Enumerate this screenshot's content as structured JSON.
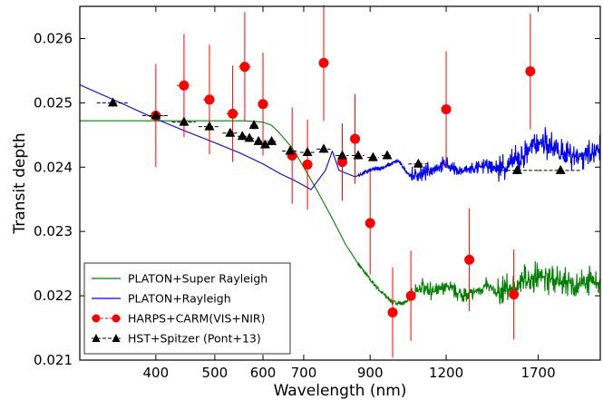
{
  "chart_data": {
    "type": "scatter",
    "xlabel": "Wavelength (nm)",
    "ylabel": "Transit depth",
    "xscale": "log",
    "xlim": [
      300,
      2150
    ],
    "ylim": [
      0.021,
      0.0265
    ],
    "xticks": [
      400,
      500,
      600,
      700,
      900,
      1200,
      1700
    ],
    "xtick_labels": [
      "400",
      "500",
      "600",
      "700",
      "900",
      "1200",
      "1700"
    ],
    "yticks": [
      0.021,
      0.022,
      0.023,
      0.024,
      0.025,
      0.026
    ],
    "ytick_labels": [
      "0.021",
      "0.022",
      "0.023",
      "0.024",
      "0.025",
      "0.026"
    ],
    "grid": false,
    "legend_position": "lower-left",
    "series": [
      {
        "name": "PLATON+Super Rayleigh",
        "kind": "line",
        "color": "#008000",
        "x": [
          300,
          400,
          500,
          560,
          600,
          620,
          640,
          670,
          700,
          740,
          780,
          820,
          860,
          900,
          940,
          980,
          1020,
          1060,
          1100,
          1150,
          1200,
          1250,
          1300,
          1350,
          1400,
          1450,
          1500,
          1550,
          1600,
          1650,
          1700,
          1750,
          1800,
          1850,
          1900,
          1950,
          2000,
          2050,
          2100,
          2150
        ],
        "y": [
          0.02472,
          0.02472,
          0.02472,
          0.02472,
          0.0247,
          0.02465,
          0.02452,
          0.0243,
          0.024,
          0.0236,
          0.0232,
          0.0228,
          0.0225,
          0.02225,
          0.02205,
          0.0219,
          0.02188,
          0.022,
          0.02215,
          0.02205,
          0.02215,
          0.02205,
          0.022,
          0.02208,
          0.02215,
          0.02205,
          0.02208,
          0.02212,
          0.02222,
          0.02228,
          0.02232,
          0.0223,
          0.02225,
          0.02218,
          0.0222,
          0.02215,
          0.02218,
          0.02222,
          0.0222,
          0.02222
        ]
      },
      {
        "name": "PLATON+Rayleigh",
        "kind": "line",
        "color": "#0000ff",
        "x": [
          300,
          350,
          400,
          450,
          500,
          550,
          600,
          640,
          680,
          720,
          760,
          780,
          800,
          850,
          900,
          950,
          1000,
          1050,
          1100,
          1150,
          1200,
          1250,
          1300,
          1350,
          1400,
          1450,
          1500,
          1550,
          1600,
          1650,
          1700,
          1750,
          1800,
          1850,
          1900,
          1950,
          2000,
          2050,
          2100,
          2150
        ],
        "y": [
          0.02528,
          0.025,
          0.02475,
          0.02455,
          0.02438,
          0.02422,
          0.02405,
          0.0239,
          0.02378,
          0.02365,
          0.02395,
          0.02425,
          0.02395,
          0.02385,
          0.02395,
          0.024,
          0.0241,
          0.02385,
          0.0239,
          0.024,
          0.02405,
          0.02395,
          0.02395,
          0.024,
          0.02402,
          0.02398,
          0.024,
          0.02408,
          0.02415,
          0.0243,
          0.0244,
          0.02435,
          0.0243,
          0.0242,
          0.02422,
          0.02418,
          0.0242,
          0.02425,
          0.02422,
          0.02425
        ]
      },
      {
        "name": "HARPS+CARM(VIS+NIR)",
        "kind": "errorbar",
        "color": "#ff0000",
        "points": [
          {
            "x": 400,
            "y": 0.0248,
            "yerr": 0.0008,
            "xerr": 12
          },
          {
            "x": 445,
            "y": 0.02527,
            "yerr": 0.0008,
            "xerr": 12
          },
          {
            "x": 490,
            "y": 0.02505,
            "yerr": 0.00085,
            "xerr": 12
          },
          {
            "x": 535,
            "y": 0.02483,
            "yerr": 0.00075,
            "xerr": 12
          },
          {
            "x": 560,
            "y": 0.02556,
            "yerr": 0.00085,
            "xerr": 12
          },
          {
            "x": 600,
            "y": 0.02498,
            "yerr": 0.0008,
            "xerr": 12
          },
          {
            "x": 670,
            "y": 0.02418,
            "yerr": 0.00075,
            "xerr": 12
          },
          {
            "x": 710,
            "y": 0.02404,
            "yerr": 0.0007,
            "xerr": 12
          },
          {
            "x": 755,
            "y": 0.02562,
            "yerr": 0.0009,
            "xerr": 12
          },
          {
            "x": 810,
            "y": 0.02408,
            "yerr": 0.0006,
            "xerr": 12
          },
          {
            "x": 850,
            "y": 0.02444,
            "yerr": 0.0007,
            "xerr": 12
          },
          {
            "x": 900,
            "y": 0.02313,
            "yerr": 0.0008,
            "xerr": 15
          },
          {
            "x": 980,
            "y": 0.02174,
            "yerr": 0.0007,
            "xerr": 15
          },
          {
            "x": 1050,
            "y": 0.022,
            "yerr": 0.0007,
            "xerr": 15
          },
          {
            "x": 1200,
            "y": 0.0249,
            "yerr": 0.0009,
            "xerr": 20
          },
          {
            "x": 1310,
            "y": 0.02256,
            "yerr": 0.0008,
            "xerr": 20
          },
          {
            "x": 1550,
            "y": 0.02202,
            "yerr": 0.0007,
            "xerr": 20
          },
          {
            "x": 1650,
            "y": 0.02549,
            "yerr": 0.0009,
            "xerr": 20
          }
        ]
      },
      {
        "name": "HST+Spitzer (Pont+13)",
        "kind": "errorbar",
        "color": "#000000",
        "points": [
          {
            "x": 340,
            "y": 0.025,
            "xerr": 20,
            "yerr": 6e-05
          },
          {
            "x": 400,
            "y": 0.0248,
            "xerr": 20,
            "yerr": 6e-05
          },
          {
            "x": 445,
            "y": 0.0247,
            "xerr": 20,
            "yerr": 6e-05
          },
          {
            "x": 490,
            "y": 0.02463,
            "xerr": 20,
            "yerr": 6e-05
          },
          {
            "x": 530,
            "y": 0.02453,
            "xerr": 15,
            "yerr": 6e-05
          },
          {
            "x": 555,
            "y": 0.02448,
            "xerr": 10,
            "yerr": 6e-05
          },
          {
            "x": 570,
            "y": 0.02445,
            "xerr": 10,
            "yerr": 6e-05
          },
          {
            "x": 580,
            "y": 0.02465,
            "xerr": 8,
            "yerr": 6e-05
          },
          {
            "x": 590,
            "y": 0.0244,
            "xerr": 8,
            "yerr": 6e-05
          },
          {
            "x": 605,
            "y": 0.02435,
            "xerr": 8,
            "yerr": 6e-05
          },
          {
            "x": 620,
            "y": 0.0244,
            "xerr": 10,
            "yerr": 6e-05
          },
          {
            "x": 665,
            "y": 0.02425,
            "xerr": 20,
            "yerr": 6e-05
          },
          {
            "x": 710,
            "y": 0.02423,
            "xerr": 20,
            "yerr": 6e-05
          },
          {
            "x": 755,
            "y": 0.02428,
            "xerr": 20,
            "yerr": 6e-05
          },
          {
            "x": 810,
            "y": 0.02418,
            "xerr": 20,
            "yerr": 6e-05
          },
          {
            "x": 860,
            "y": 0.02418,
            "xerr": 20,
            "yerr": 6e-05
          },
          {
            "x": 910,
            "y": 0.02415,
            "xerr": 20,
            "yerr": 6e-05
          },
          {
            "x": 960,
            "y": 0.02418,
            "xerr": 20,
            "yerr": 6e-05
          },
          {
            "x": 1080,
            "y": 0.02405,
            "xerr": 40,
            "yerr": 6e-05
          },
          {
            "x": 1570,
            "y": 0.02395,
            "xerr": 150,
            "yerr": 6e-05
          },
          {
            "x": 1850,
            "y": 0.02395,
            "xerr": 150,
            "yerr": 6e-05
          }
        ]
      }
    ]
  }
}
